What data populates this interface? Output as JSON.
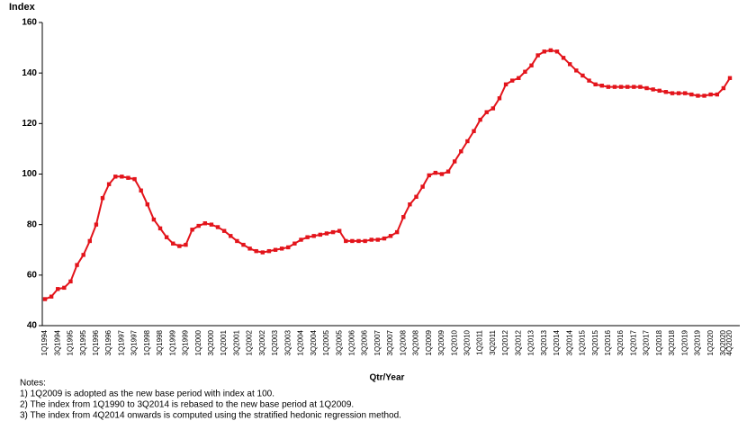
{
  "chart_data": {
    "type": "line",
    "y_label": "Index",
    "x_label": "Qtr/Year",
    "notes": [
      "Notes:",
      "1) 1Q2009 is adopted as the new base period with index at 100.",
      "2) The index from 1Q1990 to 3Q2014 is rebased to the new base period at 1Q2009.",
      "3) The index from 4Q2014 onwards is computed using the stratified hedonic regression method."
    ],
    "categories": [
      "1Q1994",
      null,
      "3Q1994",
      null,
      "1Q1995",
      null,
      "3Q1995",
      null,
      "1Q1996",
      null,
      "3Q1996",
      null,
      "1Q1997",
      null,
      "3Q1997",
      null,
      "1Q1998",
      null,
      "3Q1998",
      null,
      "1Q1999",
      null,
      "3Q1999",
      null,
      "1Q2000",
      null,
      "3Q2000",
      null,
      "1Q2001",
      null,
      "3Q2001",
      null,
      "1Q2002",
      null,
      "3Q2002",
      null,
      "1Q2003",
      null,
      "3Q2003",
      null,
      "1Q2004",
      null,
      "3Q2004",
      null,
      "1Q2005",
      null,
      "3Q2005",
      null,
      "1Q2006",
      null,
      "3Q2006",
      null,
      "1Q2007",
      null,
      "3Q2007",
      null,
      "1Q2008",
      null,
      "3Q2008",
      null,
      "1Q2009",
      null,
      "3Q2009",
      null,
      "1Q2010",
      null,
      "3Q2010",
      null,
      "1Q2011",
      null,
      "3Q2011",
      null,
      "1Q2012",
      null,
      "3Q2012",
      null,
      "1Q2013",
      null,
      "3Q2013",
      null,
      "1Q2014",
      null,
      "3Q2014",
      null,
      "1Q2015",
      null,
      "3Q2015",
      null,
      "1Q2016",
      null,
      "3Q2016",
      null,
      "1Q2017",
      null,
      "3Q2017",
      null,
      "1Q2018",
      null,
      "3Q2018",
      null,
      "1Q2019",
      null,
      "3Q2019",
      null,
      "1Q2020",
      null,
      "3Q2020",
      "4Q2020"
    ],
    "series": [
      {
        "name": "Index",
        "color": "#e3141b",
        "values": [
          50.5,
          51.5,
          54.5,
          55,
          57.5,
          64,
          68,
          73.5,
          80,
          90.5,
          96,
          99,
          99,
          98.5,
          98,
          93.5,
          88,
          82,
          78.5,
          75,
          72.5,
          71.5,
          72,
          78,
          79.5,
          80.5,
          80,
          79,
          77.5,
          75.5,
          73.5,
          72,
          70.5,
          69.5,
          69,
          69.5,
          70,
          70.5,
          71,
          72.5,
          74,
          75,
          75.5,
          76,
          76.5,
          77,
          77.5,
          73.5,
          73.5,
          73.5,
          73.5,
          74,
          74,
          74.5,
          75.5,
          77,
          83,
          88,
          91,
          95,
          99.5,
          100.5,
          100,
          101,
          105,
          109,
          113,
          117,
          121.5,
          124.5,
          126,
          130,
          135.5,
          137,
          138,
          140.5,
          143,
          147,
          148.5,
          149,
          148.5,
          146,
          143.5,
          141,
          139,
          137,
          135.5,
          135,
          134.5,
          134.5,
          134.5,
          134.5,
          134.5,
          134.5,
          134,
          133.5,
          133,
          132.5,
          132,
          132,
          132,
          131.5,
          131,
          131,
          131.5,
          131.5,
          134,
          138
        ]
      }
    ],
    "ylim": [
      40,
      160
    ],
    "yticks": [
      40,
      60,
      80,
      100,
      120,
      140,
      160
    ],
    "grid": false
  }
}
